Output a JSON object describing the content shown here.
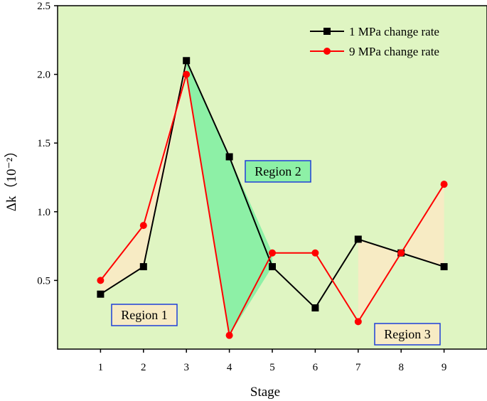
{
  "chart_data": {
    "type": "line",
    "title": "",
    "xlabel": "Stage",
    "ylabel": "Δk（10⁻²）",
    "x": [
      1,
      2,
      3,
      4,
      5,
      6,
      7,
      8,
      9
    ],
    "xlim": [
      0,
      10
    ],
    "ylim": [
      0,
      2.5
    ],
    "x_ticks": [
      "1",
      "2",
      "3",
      "4",
      "5",
      "6",
      "7",
      "8",
      "9"
    ],
    "y_ticks": [
      "0.5",
      "1.0",
      "1.5",
      "2.0",
      "2.5"
    ],
    "y_tick_values": [
      0.5,
      1.0,
      1.5,
      2.0,
      2.5
    ],
    "background_color": "#dff5c2",
    "series": [
      {
        "name": "1 MPa change rate",
        "color": "#000000",
        "marker": "square",
        "values": [
          0.4,
          0.6,
          2.1,
          1.4,
          0.6,
          0.3,
          0.8,
          0.7,
          0.6
        ]
      },
      {
        "name": "9 MPa change rate",
        "color": "#ff0000",
        "marker": "circle",
        "values": [
          0.5,
          0.9,
          2.0,
          0.1,
          0.7,
          0.7,
          0.2,
          0.7,
          1.2
        ]
      }
    ],
    "legend": "top-right",
    "regions": [
      {
        "label": "Region 1",
        "stages": [
          1,
          3
        ],
        "color": "#f7ebc4"
      },
      {
        "label": "Region 2",
        "stages": [
          3,
          5
        ],
        "color": "#8df0a6"
      },
      {
        "label": "Region 3",
        "stages": [
          7,
          9
        ],
        "color": "#f7ebc4"
      }
    ]
  }
}
